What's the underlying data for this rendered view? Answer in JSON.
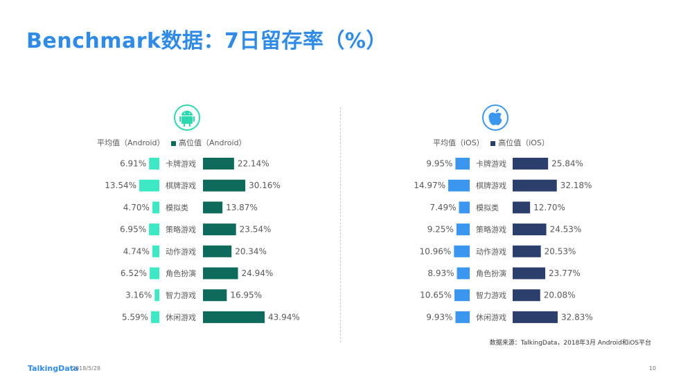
{
  "title": "Benchmark数据：7日留存率（%）",
  "footer": {
    "source": "数据来源：TalkingData，2018年3月 Android和iOS平台",
    "logo": "TalkingData",
    "date": "2018/5/28",
    "page": "10"
  },
  "chart_data": [
    {
      "type": "bar",
      "platform": "Android",
      "icon": "android-icon",
      "categories": [
        "卡牌游戏",
        "棋牌游戏",
        "模拟类",
        "策略游戏",
        "动作游戏",
        "角色扮演",
        "智力游戏",
        "休闲游戏"
      ],
      "series": [
        {
          "name": "平均值（Android）",
          "color": "#3de8c4",
          "values": [
            6.91,
            13.54,
            4.7,
            6.95,
            4.74,
            6.52,
            3.16,
            5.59
          ],
          "labels": [
            "6.91%",
            "13.54%",
            "4.70%",
            "6.95%",
            "4.74%",
            "6.52%",
            "3.16%",
            "5.59%"
          ]
        },
        {
          "name": "高位值（Android）",
          "color": "#0e6b5c",
          "values": [
            22.14,
            30.16,
            13.87,
            23.54,
            20.34,
            24.94,
            16.95,
            43.94
          ],
          "labels": [
            "22.14%",
            "30.16%",
            "13.87%",
            "23.54%",
            "20.34%",
            "24.94%",
            "16.95%",
            "43.94%"
          ]
        }
      ]
    },
    {
      "type": "bar",
      "platform": "iOS",
      "icon": "apple-icon",
      "categories": [
        "卡牌游戏",
        "棋牌游戏",
        "模拟类",
        "策略游戏",
        "动作游戏",
        "角色扮演",
        "智力游戏",
        "休闲游戏"
      ],
      "series": [
        {
          "name": "平均值（iOS）",
          "color": "#3a96ef",
          "values": [
            9.95,
            14.97,
            7.49,
            9.25,
            10.96,
            8.93,
            10.65,
            9.93
          ],
          "labels": [
            "9.95%",
            "14.97%",
            "7.49%",
            "9.25%",
            "10.96%",
            "8.93%",
            "10.65%",
            "9.93%"
          ]
        },
        {
          "name": "高位值（iOS）",
          "color": "#2c3e6b",
          "values": [
            25.84,
            32.18,
            12.7,
            24.53,
            20.53,
            23.77,
            20.08,
            32.83
          ],
          "labels": [
            "25.84%",
            "32.18%",
            "12.70%",
            "24.53%",
            "20.53%",
            "23.77%",
            "20.08%",
            "32.83%"
          ]
        }
      ]
    }
  ]
}
